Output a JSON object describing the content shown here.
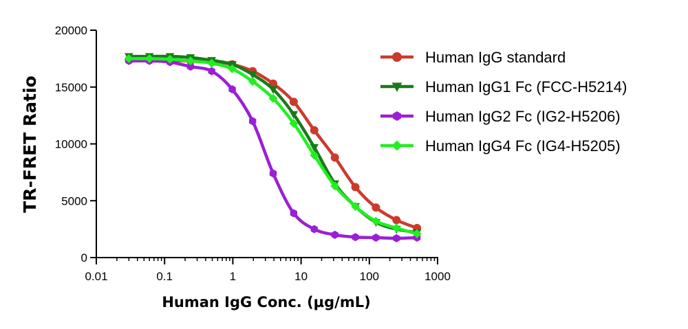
{
  "chart_data": {
    "type": "line",
    "title": "",
    "xlabel": "Human IgG Conc. (µg/mL)",
    "ylabel": "TR-FRET Ratio",
    "x_scale": "log",
    "xlim": [
      0.01,
      1000
    ],
    "ylim": [
      0,
      20000
    ],
    "x_ticks": [
      0.01,
      0.1,
      1,
      10,
      100,
      1000
    ],
    "x_tick_labels": [
      "0.01",
      "0.1",
      "1",
      "10",
      "100",
      "1000"
    ],
    "y_ticks": [
      0,
      5000,
      10000,
      15000,
      20000
    ],
    "y_tick_labels": [
      "0",
      "5000",
      "10000",
      "15000",
      "20000"
    ],
    "legend_position": "top-right",
    "grid": false,
    "series": [
      {
        "name": "Human IgG standard",
        "color": "#cc3a2e",
        "marker": "circle",
        "x": [
          0.03,
          0.06,
          0.12,
          0.24,
          0.49,
          0.98,
          1.95,
          3.9,
          7.8,
          15.6,
          31.3,
          62.5,
          125,
          250,
          500
        ],
        "y": [
          17400,
          17400,
          17350,
          17300,
          17250,
          17000,
          16400,
          15300,
          13700,
          11200,
          8800,
          6200,
          4400,
          3300,
          2600
        ]
      },
      {
        "name": "Human IgG1 Fc (FCC-H5214)",
        "color": "#1a7a1a",
        "marker": "triangle-down",
        "x": [
          0.03,
          0.06,
          0.12,
          0.24,
          0.49,
          0.98,
          1.95,
          3.9,
          7.8,
          15.6,
          31.3,
          62.5,
          125,
          250,
          500
        ],
        "y": [
          17700,
          17700,
          17700,
          17600,
          17350,
          17000,
          16100,
          14800,
          12600,
          9700,
          6500,
          4500,
          3100,
          2500,
          2200
        ]
      },
      {
        "name": "Human IgG2 Fc (IG2-H5206)",
        "color": "#9b1fd6",
        "marker": "hexagon",
        "x": [
          0.03,
          0.06,
          0.12,
          0.24,
          0.49,
          0.98,
          1.95,
          3.9,
          7.8,
          15.6,
          31.3,
          62.5,
          125,
          250,
          500
        ],
        "y": [
          17300,
          17300,
          17200,
          16800,
          16400,
          14800,
          12000,
          7400,
          3900,
          2500,
          2000,
          1800,
          1750,
          1700,
          1750
        ]
      },
      {
        "name": "Human IgG4 Fc (IG4-H5205)",
        "color": "#22ee22",
        "marker": "diamond",
        "x": [
          0.03,
          0.06,
          0.12,
          0.24,
          0.49,
          0.98,
          1.95,
          3.9,
          7.8,
          15.6,
          31.3,
          62.5,
          125,
          250,
          500
        ],
        "y": [
          17500,
          17500,
          17450,
          17300,
          17100,
          16600,
          15500,
          14000,
          11800,
          9000,
          6300,
          4500,
          3200,
          2600,
          2100
        ]
      }
    ]
  }
}
